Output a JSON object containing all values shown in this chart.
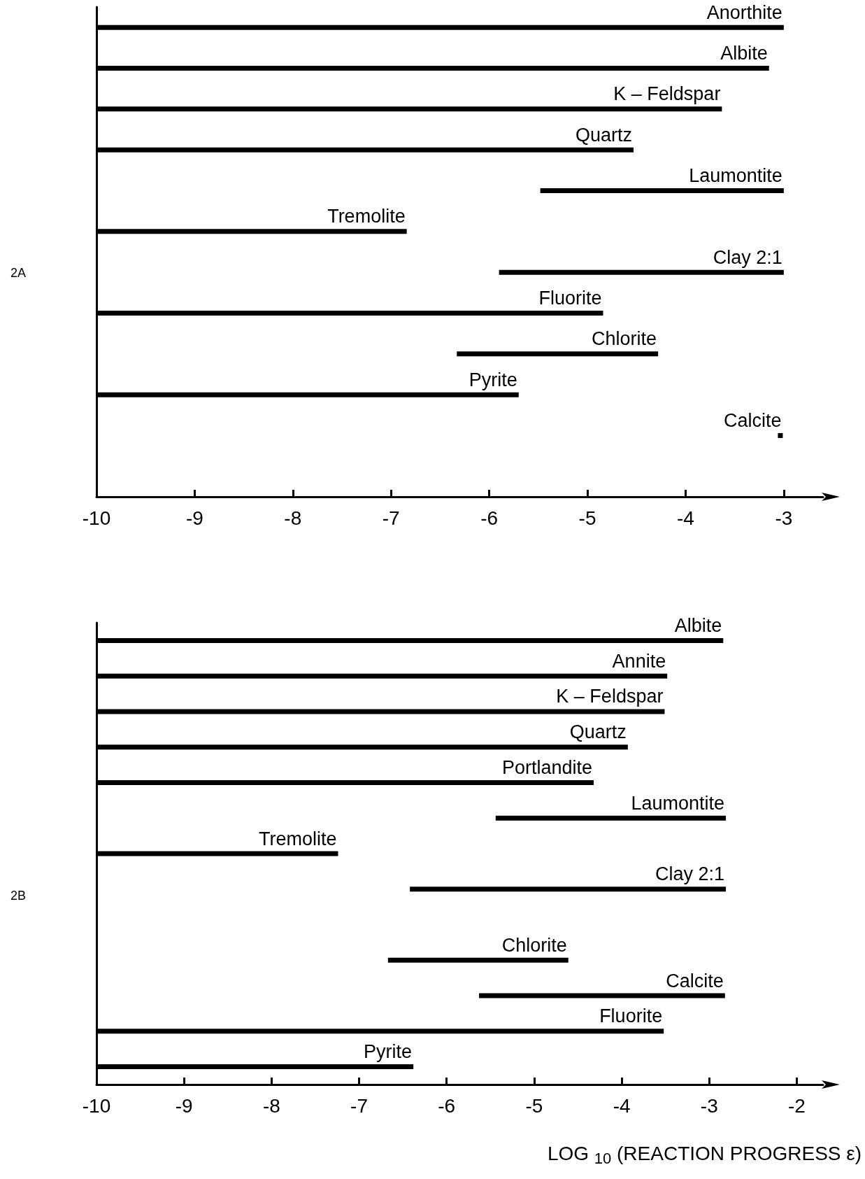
{
  "chart_data": [
    {
      "type": "bar",
      "orientation": "horizontal",
      "title": "2A",
      "tick_labels": "x",
      "categories": [
        "Anorthite",
        "Albite",
        "K – Feldspar",
        "Quartz",
        "Laumontite",
        "Tremolite",
        "Clay 2:1",
        "Fluorite",
        "Chlorite",
        "Pyrite",
        "Calcite",
        null
      ],
      "base": [
        -10,
        -10,
        -10,
        -10,
        -5.48,
        -10,
        -5.9,
        -10,
        -6.33,
        -10,
        -3.06,
        null
      ],
      "values": [
        7.0,
        6.85,
        6.37,
        5.47,
        2.48,
        3.16,
        2.9,
        5.16,
        2.05,
        4.3,
        0.05,
        null
      ],
      "color": "#000000",
      "xlim": [
        -10,
        -2.6
      ],
      "xticks": [
        -10,
        -9,
        -8,
        -7,
        -6,
        -5,
        -4,
        -3
      ],
      "grid": false
    },
    {
      "type": "bar",
      "orientation": "horizontal",
      "title": "2B",
      "xlabel": "LOG $_{10}$ (REACTION PROGRESS ε)",
      "tick_labels": "x",
      "categories": [
        "Albite",
        "Annite",
        "K – Feldspar",
        "Quartz",
        "Portlandite",
        "Laumontite",
        "Tremolite",
        "Clay 2:1",
        null,
        "Chlorite",
        "Calcite",
        "Fluorite",
        "Pyrite"
      ],
      "base": [
        -10,
        -10,
        -10,
        -10,
        -10,
        -5.44,
        -10,
        -6.42,
        null,
        -6.67,
        -5.63,
        -10,
        -10
      ],
      "values": [
        7.16,
        6.52,
        6.49,
        6.07,
        5.68,
        2.63,
        2.76,
        3.61,
        null,
        2.06,
        2.81,
        6.48,
        3.62
      ],
      "color": "#000000",
      "xlim": [
        -10,
        -1.7
      ],
      "xticks": [
        -10,
        -9,
        -8,
        -7,
        -6,
        -5,
        -4,
        -3,
        -2
      ],
      "grid": false
    }
  ]
}
